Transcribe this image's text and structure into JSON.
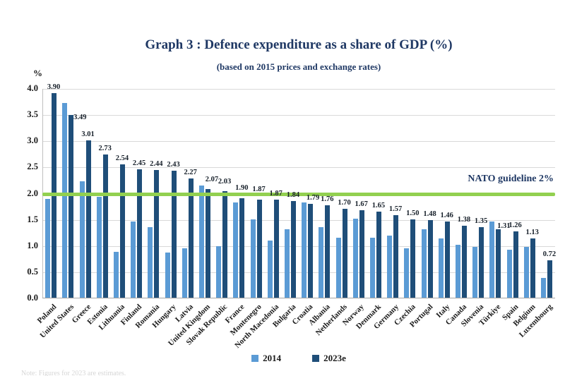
{
  "footnote": "Note: Figures for 2023 are estimates.",
  "chart_data": {
    "type": "bar",
    "title": "Graph 3 : Defence expenditure as a share of GDP (%)",
    "subtitle": "(based on 2015 prices and exchange rates)",
    "ylabel": "%",
    "xlabel": "",
    "ylim": [
      0,
      4.0
    ],
    "ytick_labels": [
      "4.0",
      "3.5",
      "3.0",
      "2.5",
      "2.0",
      "1.5",
      "1.0",
      "0.5",
      "0.0"
    ],
    "grid": true,
    "legend_position": "bottom",
    "data_labels_series": "2023e",
    "categories": [
      "Poland",
      "United States",
      "Greece",
      "Estonia",
      "Lithuania",
      "Finland",
      "Romania",
      "Hungary",
      "Latvia",
      "United Kingdom",
      "Slovak Republic",
      "France",
      "Montenegro",
      "North Macedonia",
      "Bulgaria",
      "Croatia",
      "Albania",
      "Netherlands",
      "Norway",
      "Denmark",
      "Germany",
      "Czechia",
      "Portugal",
      "Italy",
      "Canada",
      "Slovenia",
      "Türkiye",
      "Spain",
      "Belgium",
      "Luxembourg"
    ],
    "series": [
      {
        "name": "2014",
        "color": "#5B9BD5",
        "values": [
          1.88,
          3.72,
          2.22,
          1.93,
          0.88,
          1.45,
          1.35,
          0.86,
          0.94,
          2.14,
          0.99,
          1.82,
          1.5,
          1.09,
          1.31,
          1.82,
          1.35,
          1.15,
          1.51,
          1.15,
          1.18,
          0.94,
          1.3,
          1.13,
          1.01,
          0.97,
          1.45,
          0.92,
          0.97,
          0.38
        ]
      },
      {
        "name": "2023e",
        "color": "#1F4E79",
        "values": [
          3.9,
          3.49,
          3.01,
          2.73,
          2.54,
          2.45,
          2.44,
          2.43,
          2.27,
          2.07,
          2.03,
          1.9,
          1.87,
          1.87,
          1.84,
          1.79,
          1.76,
          1.7,
          1.67,
          1.65,
          1.57,
          1.5,
          1.48,
          1.46,
          1.38,
          1.35,
          1.31,
          1.26,
          1.13,
          0.72
        ]
      }
    ],
    "reference_line": {
      "value": 2.0,
      "label": "NATO guideline 2%",
      "color": "#92D050"
    },
    "label_offsets": {
      "1": [
        13,
        -12
      ],
      "9": [
        6,
        5
      ],
      "10": [
        0,
        5
      ],
      "11": [
        0,
        6
      ],
      "12": [
        0,
        6
      ],
      "15": [
        4,
        0
      ],
      "26": [
        8,
        -4
      ]
    }
  }
}
